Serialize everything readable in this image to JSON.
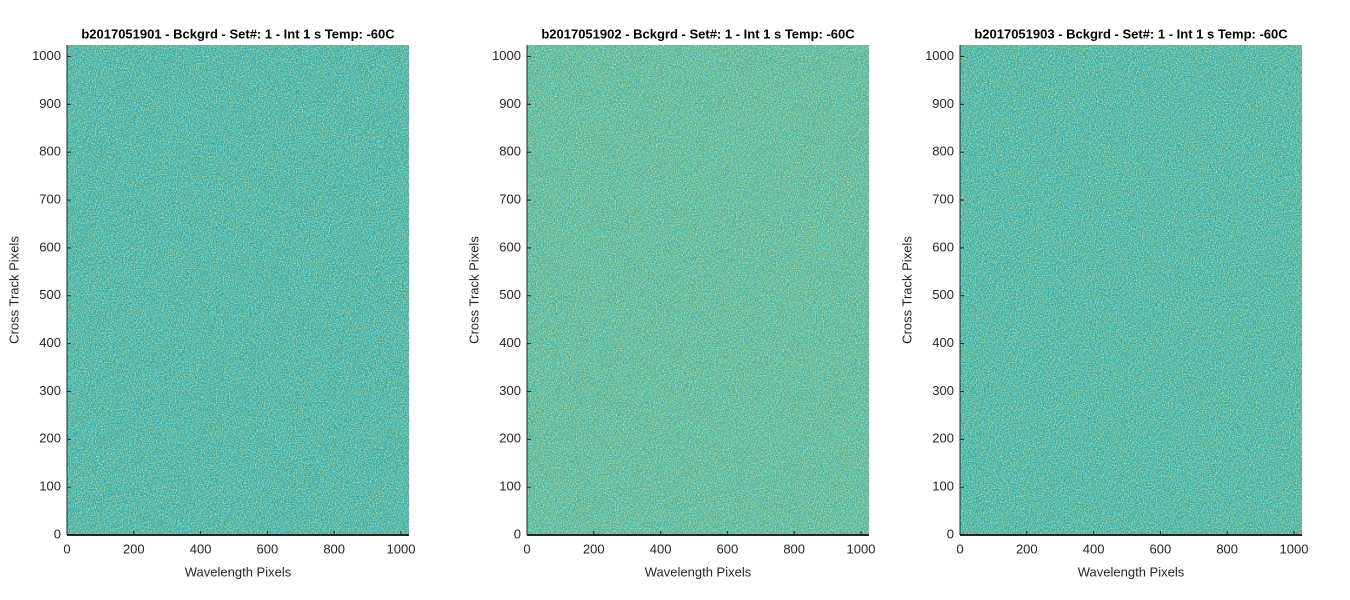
{
  "chart_data": [
    {
      "type": "image",
      "title": "b2017051901 - Bckgrd - Set#: 1 - Int 1 s Temp: -60C",
      "x_label": "Wavelength Pixels",
      "y_label": "Cross Track Pixels",
      "xlim": [
        0,
        1024
      ],
      "ylim": [
        0,
        1024
      ],
      "xticks": [
        0,
        200,
        400,
        600,
        800,
        1000
      ],
      "yticks": [
        0,
        100,
        200,
        300,
        400,
        500,
        600,
        700,
        800,
        900,
        1000
      ],
      "color": "#2ea69b"
    },
    {
      "type": "image",
      "title": "b2017051902 - Bckgrd - Set#: 1 - Int 1 s Temp: -60C",
      "x_label": "Wavelength Pixels",
      "y_label": "Cross Track Pixels",
      "xlim": [
        0,
        1024
      ],
      "ylim": [
        0,
        1024
      ],
      "xticks": [
        0,
        200,
        400,
        600,
        800,
        1000
      ],
      "yticks": [
        0,
        100,
        200,
        300,
        400,
        500,
        600,
        700,
        800,
        900,
        1000
      ],
      "color": "#46ad8c"
    },
    {
      "type": "image",
      "title": "b2017051903 - Bckgrd - Set#: 1 - Int 1 s Temp: -60C",
      "x_label": "Wavelength Pixels",
      "y_label": "Cross Track Pixels",
      "xlim": [
        0,
        1024
      ],
      "ylim": [
        0,
        1024
      ],
      "xticks": [
        0,
        200,
        400,
        600,
        800,
        1000
      ],
      "yticks": [
        0,
        100,
        200,
        300,
        400,
        500,
        600,
        700,
        800,
        900,
        1000
      ],
      "color": "#30a898"
    }
  ]
}
